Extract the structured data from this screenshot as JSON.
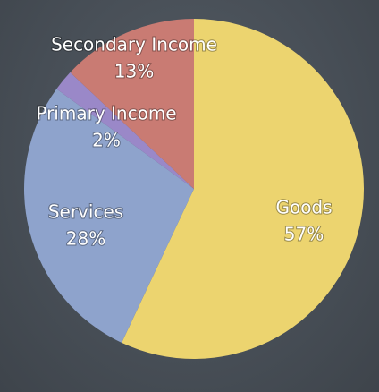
{
  "chart_data": {
    "type": "pie",
    "categories": [
      "Goods",
      "Services",
      "Primary Income",
      "Secondary Income"
    ],
    "values": [
      57,
      28,
      2,
      13
    ],
    "value_labels": [
      "57%",
      "28%",
      "2%",
      "13%"
    ],
    "colors": [
      "#ecd46f",
      "#8ea3cc",
      "#9a88c8",
      "#c97b73"
    ]
  }
}
